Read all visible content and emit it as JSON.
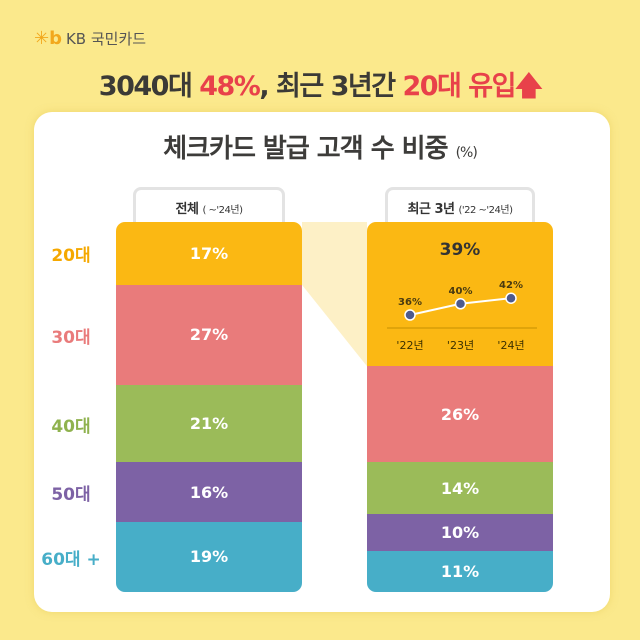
{
  "brand": {
    "logo_text": "KB 국민카드"
  },
  "headline": {
    "part1": "3040대 ",
    "part2": "48%",
    "part3": ", 최근 3년간 ",
    "part4": "20대 유입",
    "arrow": "arrow-up-icon"
  },
  "chart_data": {
    "type": "bar",
    "title": "체크카드 발급 고객 수 비중",
    "unit": "(%)",
    "categories": [
      "20대",
      "30대",
      "40대",
      "50대",
      "60대 +"
    ],
    "colors": [
      "#fbb813",
      "#e97b7b",
      "#9bbb59",
      "#7d62a5",
      "#47aec8"
    ],
    "label_colors": [
      "#f5a800",
      "#e97b7b",
      "#8fb24e",
      "#7d62a5",
      "#47aec8"
    ],
    "series": [
      {
        "name": "전체",
        "note": "( ~'24년)",
        "values": [
          17,
          27,
          21,
          16,
          19
        ]
      },
      {
        "name": "최근 3년",
        "note": "('22 ~'24년)",
        "values": [
          39,
          26,
          14,
          10,
          11
        ]
      }
    ],
    "inset_line": {
      "type": "line",
      "x": [
        "'22년",
        "'23년",
        "'24년"
      ],
      "y": [
        36,
        40,
        42
      ],
      "labels": [
        "36%",
        "40%",
        "42%"
      ]
    }
  }
}
